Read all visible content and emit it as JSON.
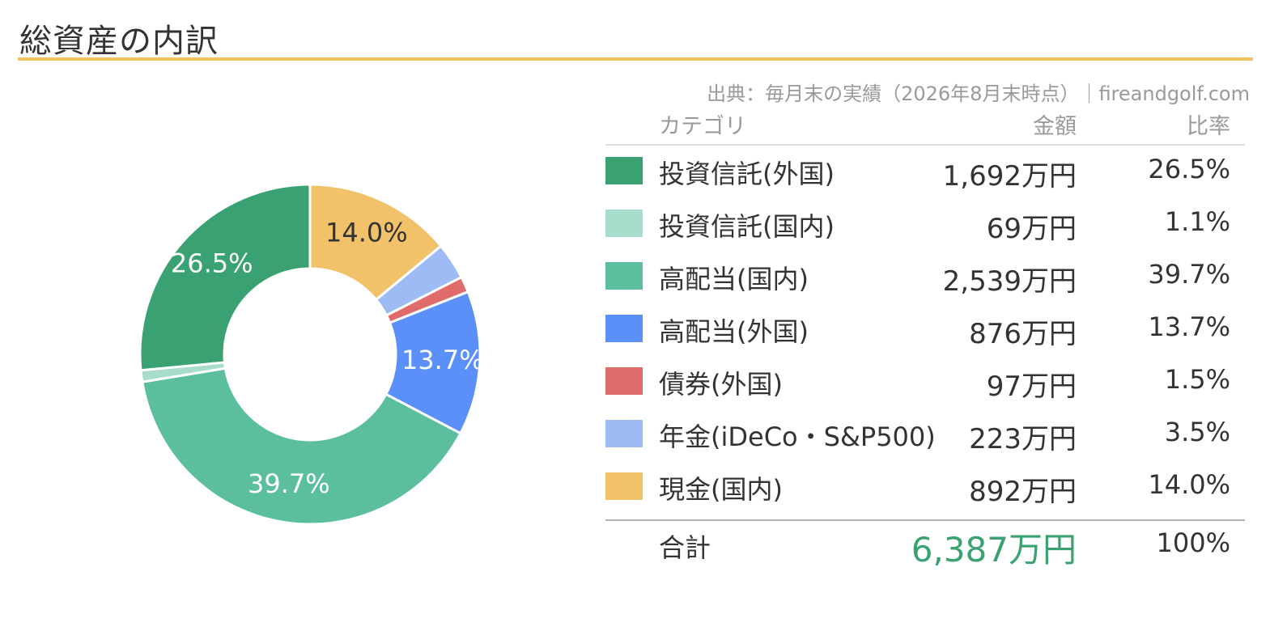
{
  "title": "総資産の内訳",
  "source": "出典：毎月末の実績（2026年8月末時点）｜fireandgolf.com",
  "table": {
    "headers": {
      "category": "カテゴリ",
      "amount": "金額",
      "ratio": "比率"
    },
    "rows": [
      {
        "category": "投資信託(外国)",
        "amount": "1,692万円",
        "ratio": "26.5%",
        "color": "#3aa272"
      },
      {
        "category": "投資信託(国内)",
        "amount": "69万円",
        "ratio": "1.1%",
        "color": "#a8ddc9"
      },
      {
        "category": "高配当(国内)",
        "amount": "2,539万円",
        "ratio": "39.7%",
        "color": "#5bbf9f"
      },
      {
        "category": "高配当(外国)",
        "amount": "876万円",
        "ratio": "13.7%",
        "color": "#5b8ff9"
      },
      {
        "category": "債券(外国)",
        "amount": "97万円",
        "ratio": "1.5%",
        "color": "#e06b6b"
      },
      {
        "category": "年金(iDeCo・S&P500)",
        "amount": "223万円",
        "ratio": "3.5%",
        "color": "#9dbbf5"
      },
      {
        "category": "現金(国内)",
        "amount": "892万円",
        "ratio": "14.0%",
        "color": "#f2c26b"
      }
    ],
    "total": {
      "label": "合計",
      "amount": "6,387万円",
      "ratio": "100%",
      "color": "#3aa272"
    }
  },
  "chart_data": {
    "type": "pie",
    "donut": true,
    "start": "top, clockwise",
    "slices": [
      {
        "label": "現金(国内)",
        "value": 14.0,
        "display": "14.0%",
        "color": "#f2c26b"
      },
      {
        "label": "年金(iDeCo・S&P500)",
        "value": 3.5,
        "display": "",
        "color": "#9dbbf5"
      },
      {
        "label": "債券(外国)",
        "value": 1.5,
        "display": "",
        "color": "#e06b6b"
      },
      {
        "label": "高配当(外国)",
        "value": 13.7,
        "display": "13.7%",
        "color": "#5b8ff9"
      },
      {
        "label": "高配当(国内)",
        "value": 39.7,
        "display": "39.7%",
        "color": "#5bbf9f"
      },
      {
        "label": "投資信託(国内)",
        "value": 1.1,
        "display": "",
        "color": "#a8ddc9"
      },
      {
        "label": "投資信託(外国)",
        "value": 26.5,
        "display": "26.5%",
        "color": "#3aa272"
      }
    ]
  }
}
